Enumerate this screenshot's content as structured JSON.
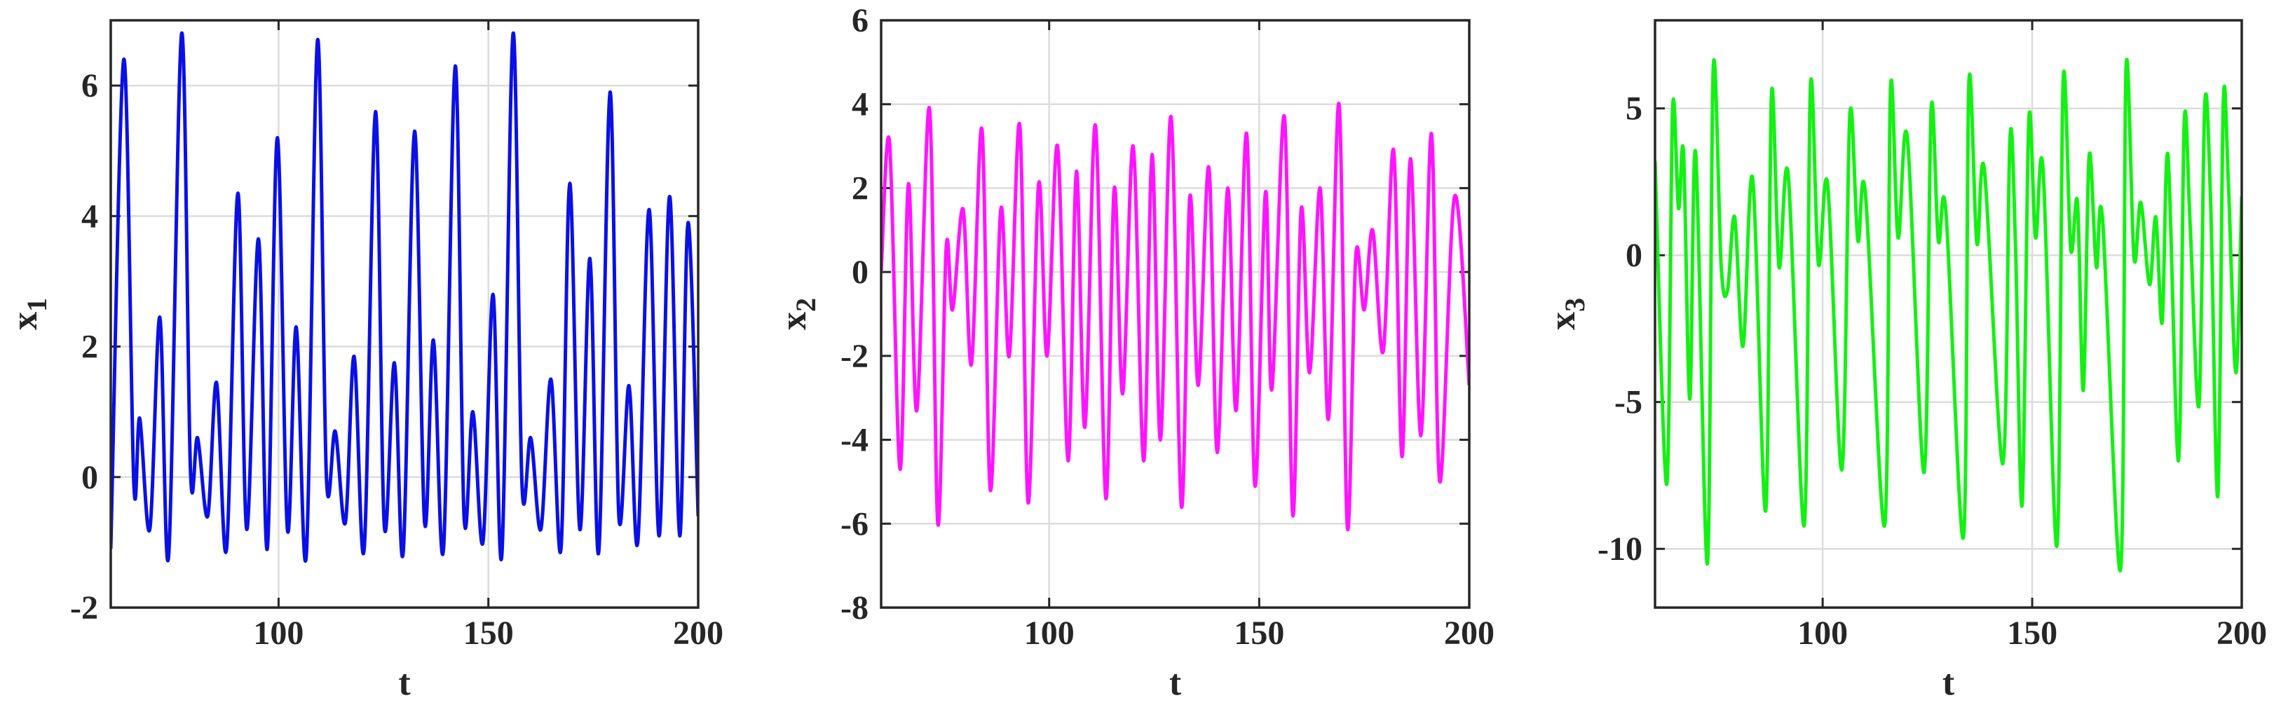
{
  "chart_data": [
    {
      "type": "line",
      "xlabel": "t",
      "ylabel": "x",
      "ylabel_subscript": "1",
      "color": "#0a10e6",
      "xlim": [
        60,
        200
      ],
      "xticks": [
        100,
        150,
        200
      ],
      "ylim": [
        -2,
        7
      ],
      "yticks": [
        -2,
        0,
        2,
        4,
        6
      ],
      "grid": true,
      "x": [
        60,
        63.1,
        65.5,
        66.9,
        69.3,
        71.7,
        73.8,
        76.9,
        79,
        80.7,
        83.1,
        85.2,
        87.6,
        90.3,
        92.4,
        95.2,
        97.3,
        99.7,
        102.1,
        104.2,
        106.6,
        109.3,
        111.4,
        113.5,
        115.9,
        118,
        120.4,
        123.1,
        125.2,
        127.6,
        129.7,
        132.4,
        134.8,
        136.9,
        139.3,
        142.1,
        144.2,
        146.3,
        148.7,
        151.1,
        153.2,
        155.9,
        158,
        160.1,
        162.5,
        164.9,
        167.3,
        169.4,
        171.8,
        174.2,
        176.3,
        179,
        181.1,
        183.5,
        185.6,
        188.3,
        190.7,
        193.2,
        195.6,
        197.6,
        200
      ],
      "values": [
        -1.1,
        6.4,
        -0.1,
        0.9,
        -0.8,
        2.45,
        -1.2,
        6.8,
        0.1,
        0.6,
        -0.6,
        1.45,
        -1.1,
        4.35,
        -0.8,
        3.65,
        -1.1,
        5.2,
        -0.8,
        2.3,
        -1.2,
        6.7,
        0,
        0.7,
        -0.7,
        1.85,
        -1.1,
        5.6,
        -0.75,
        1.75,
        -1.15,
        5.3,
        -0.7,
        2.1,
        -1.1,
        6.3,
        -0.6,
        1.0,
        -1.0,
        2.8,
        -1.2,
        6.8,
        -0.1,
        0.6,
        -0.8,
        1.5,
        -1.1,
        4.5,
        -0.8,
        3.35,
        -1.15,
        5.9,
        -0.6,
        1.4,
        -1.0,
        4.1,
        -0.9,
        4.3,
        -0.9,
        3.9,
        -0.6
      ]
    },
    {
      "type": "line",
      "xlabel": "t",
      "ylabel": "x",
      "ylabel_subscript": "2",
      "color": "#ff14ff",
      "xlim": [
        60,
        200
      ],
      "xticks": [
        100,
        150,
        200
      ],
      "ylim": [
        -8,
        6
      ],
      "yticks": [
        -8,
        -6,
        -4,
        -2,
        0,
        2,
        4,
        6
      ],
      "grid": true,
      "x": [
        60,
        62,
        64.5,
        66.5,
        68.5,
        71.5,
        73.5,
        75.5,
        77,
        79.5,
        81.5,
        84,
        86,
        88.5,
        90.5,
        93,
        95,
        97.5,
        99.5,
        102,
        104.5,
        106.5,
        108.5,
        111,
        113.5,
        115.5,
        117.5,
        120,
        122.5,
        124.5,
        126.5,
        129,
        131.5,
        133.5,
        135.5,
        138,
        140,
        142.5,
        144.5,
        147,
        149,
        151.5,
        153,
        156,
        158,
        160,
        162,
        164.5,
        166.5,
        169,
        171,
        173,
        175,
        177,
        179.5,
        182,
        184,
        186,
        188.5,
        191,
        193,
        196.5,
        200
      ],
      "values": [
        0,
        3.1,
        -4.7,
        2.1,
        -3.3,
        3.9,
        -6.0,
        0.6,
        -0.9,
        1.5,
        -2.2,
        3.4,
        -5.2,
        1.5,
        -2.0,
        3.5,
        -5.5,
        2.1,
        -2.0,
        3.0,
        -4.5,
        2.4,
        -3.7,
        3.5,
        -5.4,
        2.0,
        -2.9,
        3.0,
        -4.5,
        2.8,
        -4.0,
        3.7,
        -5.6,
        1.8,
        -2.7,
        2.5,
        -4.3,
        2.0,
        -3.3,
        3.3,
        -5.1,
        1.9,
        -2.8,
        3.7,
        -5.8,
        1.5,
        -2.4,
        2.0,
        -3.5,
        4.0,
        -6.1,
        0.4,
        -0.9,
        1.0,
        -1.9,
        2.9,
        -4.4,
        2.7,
        -3.9,
        3.3,
        -5.0,
        1.8,
        -2.7
      ]
    },
    {
      "type": "line",
      "xlabel": "t",
      "ylabel": "x",
      "ylabel_subscript": "3",
      "color": "#14f014",
      "xlim": [
        60,
        200
      ],
      "xticks": [
        100,
        150,
        200
      ],
      "ylim": [
        -12,
        8
      ],
      "yticks": [
        -10,
        -5,
        0,
        5
      ],
      "grid": true,
      "x": [
        60,
        62.8,
        64.2,
        65.6,
        66.8,
        68.3,
        69.7,
        72.5,
        73.9,
        75.8,
        77.3,
        79,
        81,
        83.3,
        86.4,
        87.8,
        89.6,
        91.8,
        95.6,
        97.1,
        99,
        101.2,
        104.6,
        106.5,
        108.4,
        110.2,
        114.8,
        116.2,
        118,
        120.2,
        124.2,
        125.9,
        127.6,
        129.4,
        133.6,
        134.9,
        136.8,
        138.6,
        143,
        144.7,
        146,
        147.6,
        149.2,
        150.8,
        152.6,
        155.9,
        157.4,
        159.2,
        160.8,
        162.2,
        163.6,
        165.3,
        166.8,
        171.1,
        172.4,
        174.3,
        175.9,
        178,
        179.5,
        181,
        182.4,
        184.9,
        186.3,
        187.7,
        189.8,
        191.2,
        192.6,
        194.3,
        195.6,
        196.8,
        198.6,
        200
      ],
      "values": [
        3.2,
        -7.8,
        5.0,
        1.6,
        3.5,
        -4.9,
        3.5,
        -10.5,
        6.4,
        -0.4,
        -1.2,
        1.3,
        -3.1,
        2.6,
        -8.7,
        5.5,
        -0.4,
        2.7,
        -9.2,
        5.8,
        -0.3,
        2.4,
        -7.3,
        4.8,
        0.5,
        2.1,
        -9.2,
        5.7,
        0.6,
        4.0,
        -7.4,
        5.0,
        0.5,
        1.5,
        -9.6,
        5.9,
        0.4,
        2.9,
        -7.1,
        4.0,
        0.4,
        -8.5,
        4.6,
        0.6,
        2.9,
        -9.9,
        6.0,
        0.2,
        1.8,
        -4.6,
        3.4,
        -0.4,
        1.2,
        -10.7,
        6.4,
        -0.1,
        1.8,
        -1.0,
        1.3,
        -2.3,
        3.4,
        -7.0,
        4.6,
        1.0,
        -5.1,
        5.2,
        1.7,
        -8.2,
        5.2,
        2.5,
        -4.0,
        2.0
      ]
    }
  ]
}
